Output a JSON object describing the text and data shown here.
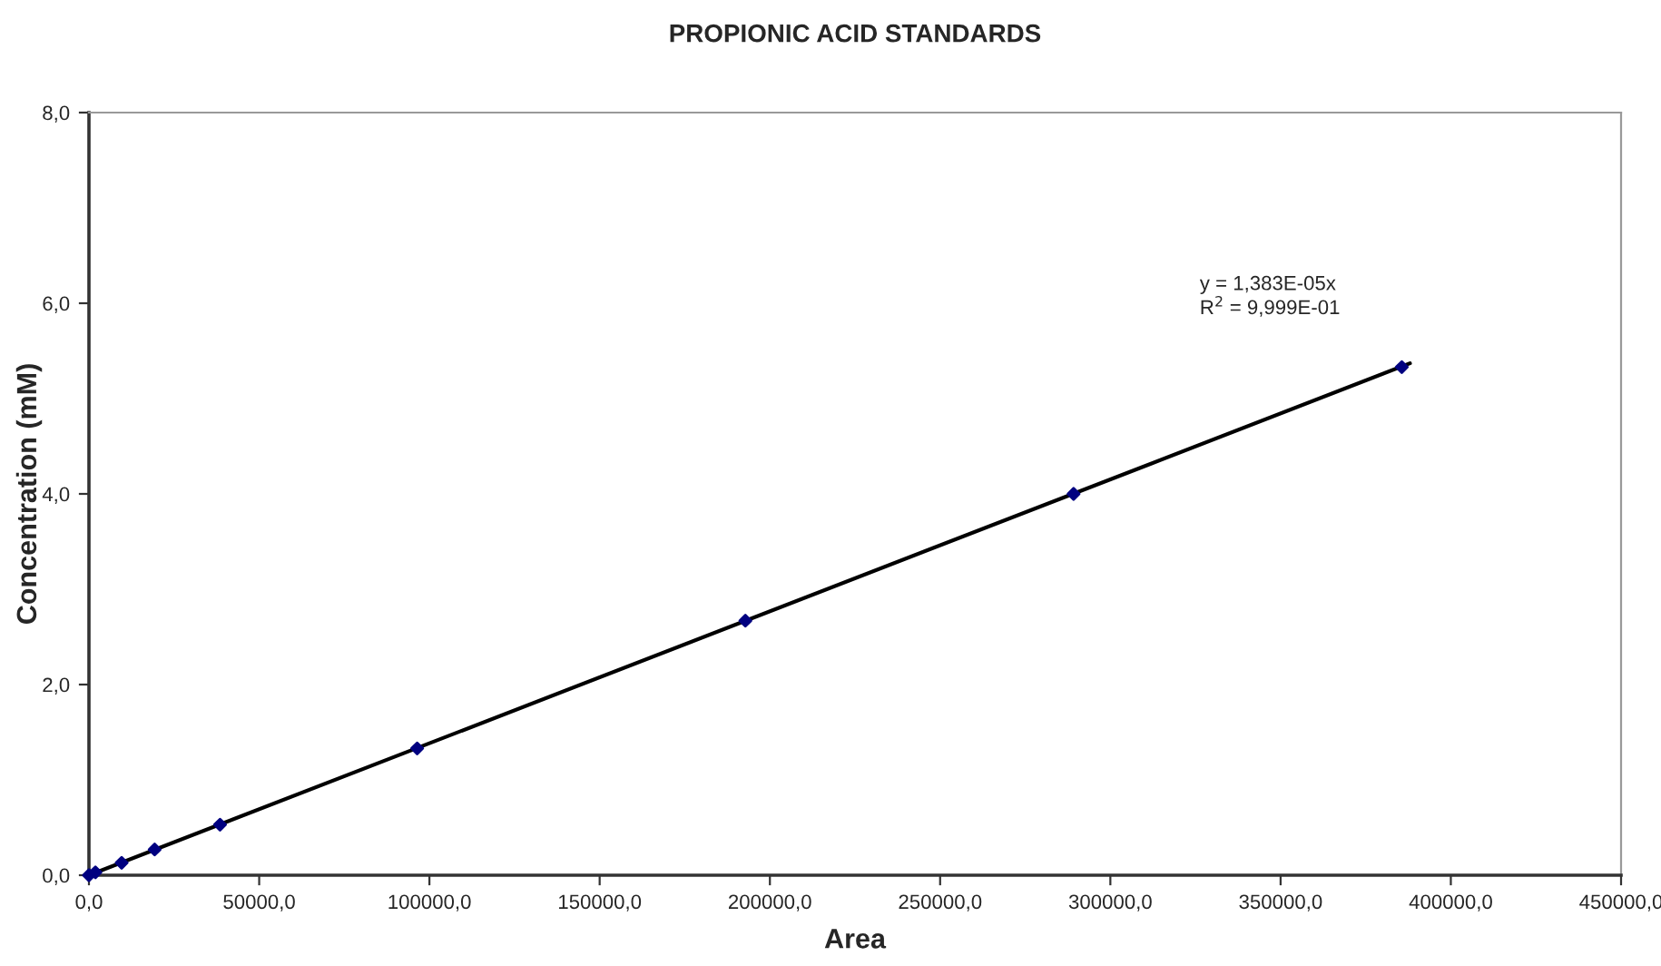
{
  "chart_data": {
    "type": "scatter",
    "title": "PROPIONIC ACID STANDARDS",
    "xlabel": "Area",
    "ylabel": "Concentration (mM)",
    "series": [
      {
        "color": "#000080",
        "marker": "diamond",
        "x": [
          0,
          1900,
          9600,
          19300,
          38500,
          96400,
          192800,
          289200,
          385600
        ],
        "values": [
          0,
          0.03,
          0.13,
          0.27,
          0.53,
          1.33,
          2.67,
          4.0,
          5.33
        ]
      },
      {
        "type": "line",
        "color": "#000000",
        "marker": "none",
        "line_style": "solid",
        "x": [
          0,
          388000
        ],
        "values": [
          0,
          5.37
        ]
      }
    ],
    "annotations": [
      "y = 1,383E-05x\nR$^{2}$ = 9,999E-01"
    ],
    "xlim": [
      0,
      450000
    ],
    "ylim": [
      0,
      8
    ],
    "xticks": [
      {
        "value": 0,
        "label": "0,0"
      },
      {
        "value": 50000,
        "label": "50000,0"
      },
      {
        "value": 100000,
        "label": "100000,0"
      },
      {
        "value": 150000,
        "label": "150000,0"
      },
      {
        "value": 200000,
        "label": "200000,0"
      },
      {
        "value": 250000,
        "label": "250000,0"
      },
      {
        "value": 300000,
        "label": "300000,0"
      },
      {
        "value": 350000,
        "label": "350000,0"
      },
      {
        "value": 400000,
        "label": "400000,0"
      },
      {
        "value": 450000,
        "label": "450000,0"
      }
    ],
    "yticks": [
      {
        "value": 0,
        "label": "0,0"
      },
      {
        "value": 2,
        "label": "2,0"
      },
      {
        "value": 4,
        "label": "4,0"
      },
      {
        "value": 6,
        "label": "6,0"
      },
      {
        "value": 8,
        "label": "8,0"
      }
    ],
    "grid": false,
    "legend": false
  }
}
